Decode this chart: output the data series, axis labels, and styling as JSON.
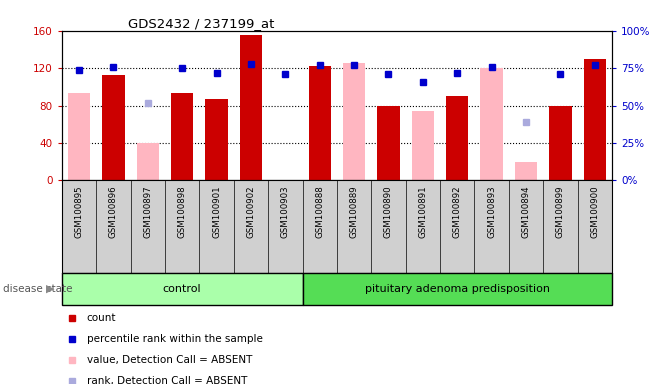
{
  "title": "GDS2432 / 237199_at",
  "samples": [
    "GSM100895",
    "GSM100896",
    "GSM100897",
    "GSM100898",
    "GSM100901",
    "GSM100902",
    "GSM100903",
    "GSM100888",
    "GSM100889",
    "GSM100890",
    "GSM100891",
    "GSM100892",
    "GSM100893",
    "GSM100894",
    "GSM100899",
    "GSM100900"
  ],
  "control_count": 7,
  "disease_label": "control",
  "disease_label2": "pituitary adenoma predisposition",
  "ylim_left": [
    0,
    160
  ],
  "ylim_right": [
    0,
    100
  ],
  "yticks_left": [
    0,
    40,
    80,
    120,
    160
  ],
  "yticks_right": [
    0,
    25,
    50,
    75,
    100
  ],
  "ytick_labels_left": [
    "0",
    "40",
    "80",
    "120",
    "160"
  ],
  "ytick_labels_right": [
    "0%",
    "25%",
    "50%",
    "75%",
    "100%"
  ],
  "red_bars": [
    0,
    113,
    0,
    93,
    87,
    155,
    0,
    122,
    0,
    80,
    0,
    90,
    0,
    0,
    80,
    130
  ],
  "pink_bars": [
    93,
    0,
    40,
    0,
    0,
    0,
    0,
    0,
    125,
    0,
    74,
    0,
    120,
    20,
    0,
    0
  ],
  "blue_sq_pct": [
    74,
    76,
    0,
    75,
    72,
    78,
    71,
    77,
    77,
    71,
    66,
    72,
    76,
    0,
    71,
    77
  ],
  "lb_sq_pct": [
    0,
    0,
    52,
    0,
    0,
    0,
    0,
    0,
    0,
    0,
    0,
    0,
    0,
    39,
    0,
    0
  ],
  "absent_mask": [
    true,
    false,
    true,
    false,
    false,
    false,
    true,
    false,
    true,
    false,
    true,
    false,
    true,
    true,
    false,
    false
  ],
  "bg_color": "#ffffff",
  "green_control": "#aaffaa",
  "green_disease": "#44dd44",
  "left_axis_color": "#cc0000",
  "right_axis_color": "#0000cc"
}
